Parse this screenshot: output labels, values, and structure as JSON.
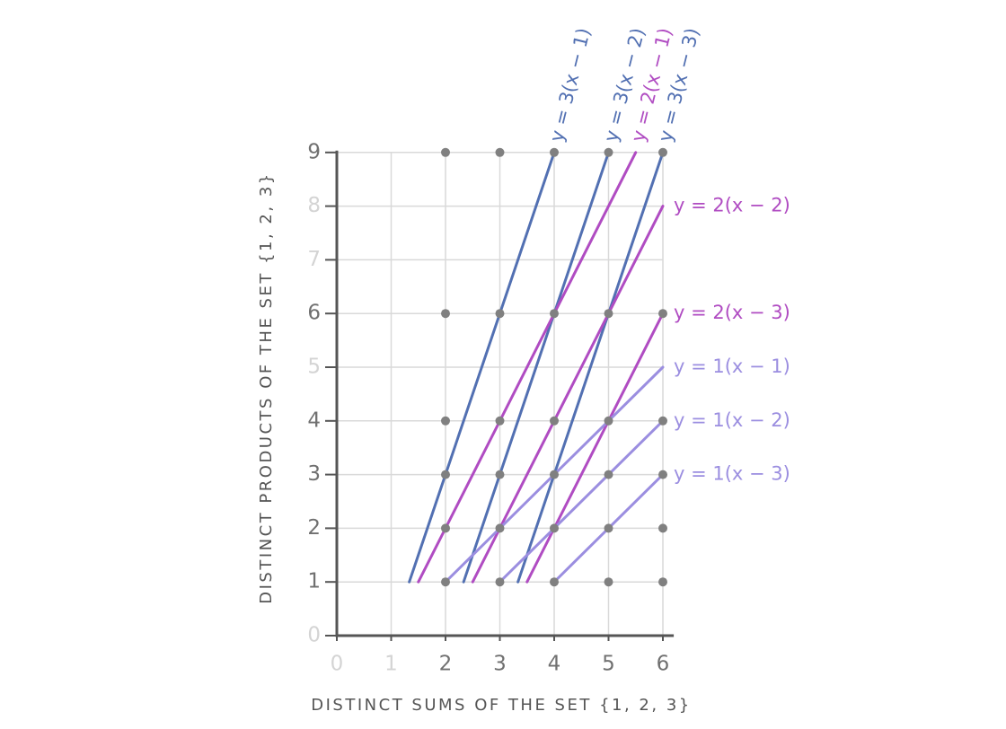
{
  "chart_data": {
    "type": "scatter",
    "x_label": "DISTINCT SUMS OF THE SET {1, 2, 3}",
    "y_label": "DISTINCT PRODUCTS OF THE SET {1, 2, 3}",
    "xlim": [
      0,
      6.2
    ],
    "ylim": [
      0,
      9
    ],
    "xticks": [
      0,
      1,
      2,
      3,
      4,
      5,
      6
    ],
    "yticks": [
      0,
      1,
      2,
      3,
      4,
      5,
      6,
      7,
      8,
      9
    ],
    "grid": true,
    "series": [
      {
        "type": "scatter",
        "color": "#808080",
        "x": [
          2,
          2,
          2,
          2,
          2,
          2,
          3,
          3,
          3,
          3,
          3,
          3,
          4,
          4,
          4,
          4,
          4,
          4,
          5,
          5,
          5,
          5,
          5,
          5,
          6,
          6,
          6,
          6,
          6,
          6
        ],
        "values": [
          1,
          2,
          3,
          4,
          6,
          9,
          1,
          2,
          3,
          4,
          6,
          9,
          1,
          2,
          3,
          4,
          6,
          9,
          1,
          2,
          3,
          4,
          6,
          9,
          1,
          2,
          3,
          4,
          6,
          9
        ]
      },
      {
        "type": "line",
        "name": "y = 3(x − 1)",
        "color": "#5270b2",
        "x": [
          1.333,
          4
        ],
        "values": [
          1,
          9
        ]
      },
      {
        "type": "line",
        "name": "y = 3(x − 2)",
        "color": "#5270b2",
        "x": [
          2.333,
          5
        ],
        "values": [
          1,
          9
        ]
      },
      {
        "type": "line",
        "name": "y = 2(x − 1)",
        "color": "#b04cc2",
        "x": [
          1.5,
          5.5
        ],
        "values": [
          1,
          9
        ]
      },
      {
        "type": "line",
        "name": "y = 3(x − 3)",
        "color": "#5270b2",
        "x": [
          3.333,
          6
        ],
        "values": [
          1,
          9
        ]
      },
      {
        "type": "line",
        "name": "y = 2(x − 2)",
        "color": "#b04cc2",
        "x": [
          2.5,
          6
        ],
        "values": [
          1,
          8
        ]
      },
      {
        "type": "line",
        "name": "y = 2(x − 3)",
        "color": "#b04cc2",
        "x": [
          3.5,
          6
        ],
        "values": [
          1,
          6
        ]
      },
      {
        "type": "line",
        "name": "y = 1(x − 1)",
        "color": "#9b8ee0",
        "x": [
          2,
          6
        ],
        "values": [
          1,
          5
        ]
      },
      {
        "type": "line",
        "name": "y = 1(x − 2)",
        "color": "#9b8ee0",
        "x": [
          3,
          6
        ],
        "values": [
          1,
          4
        ]
      },
      {
        "type": "line",
        "name": "y = 1(x − 3)",
        "color": "#9b8ee0",
        "x": [
          4,
          6
        ],
        "values": [
          1,
          3
        ]
      }
    ]
  }
}
